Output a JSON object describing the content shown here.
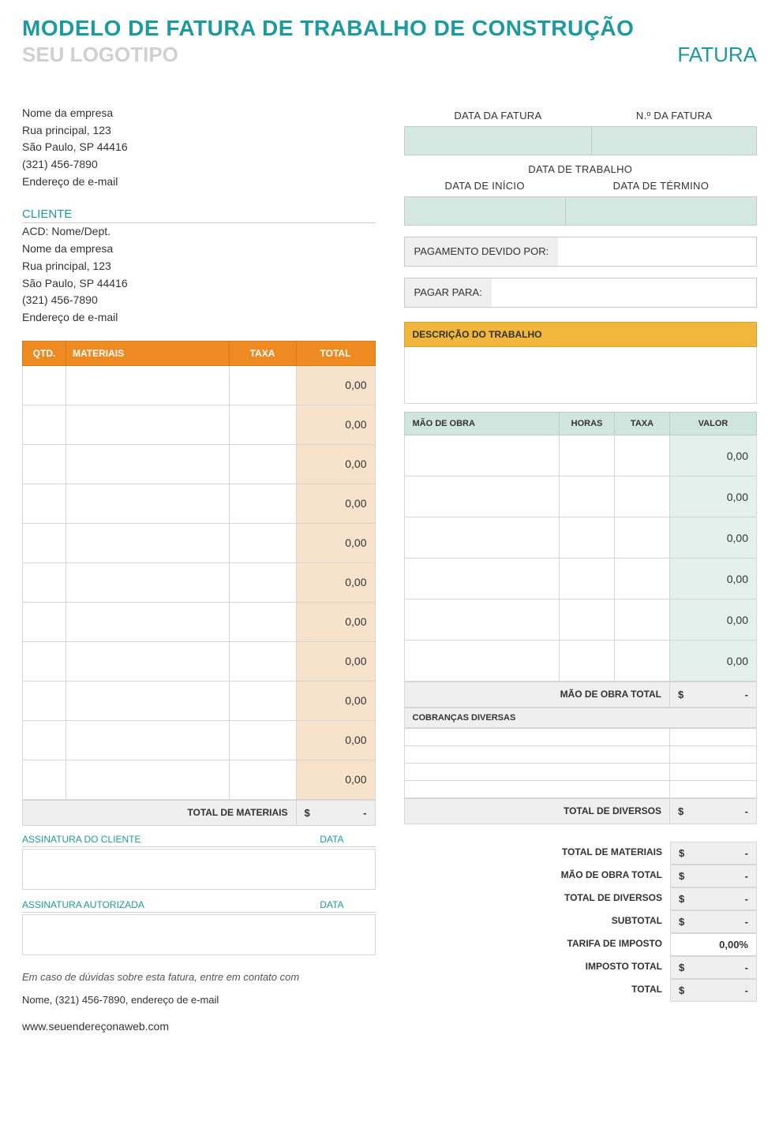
{
  "header": {
    "title": "MODELO DE FATURA DE TRABALHO DE CONSTRUÇÃO",
    "logo_placeholder": "SEU LOGOTIPO",
    "invoice_label": "FATURA"
  },
  "company": {
    "name": "Nome da empresa",
    "address1": "Rua principal, 123",
    "address2": "São Paulo, SP 44416",
    "phone": "(321) 456-7890",
    "email": "Endereço de e-mail"
  },
  "client": {
    "section_label": "CLIENTE",
    "attn": "ACD: Nome/Dept.",
    "name": "Nome da empresa",
    "address1": "Rua principal, 123",
    "address2": "São Paulo, SP 44416",
    "phone": "(321) 456-7890",
    "email": "Endereço de e-mail"
  },
  "info": {
    "invoice_date_label": "DATA DA FATURA",
    "invoice_no_label": "N.º DA FATURA",
    "work_date_label": "DATA DE TRABALHO",
    "start_label": "DATA DE INÍCIO",
    "end_label": "DATA DE TÉRMINO",
    "payment_due_label": "PAGAMENTO DEVIDO POR:",
    "pay_to_label": "PAGAR PARA:"
  },
  "materials": {
    "headers": {
      "qty": "QTD.",
      "item": "MATERIAIS",
      "rate": "TAXA",
      "total": "TOTAL"
    },
    "rows": [
      {
        "total": "0,00"
      },
      {
        "total": "0,00"
      },
      {
        "total": "0,00"
      },
      {
        "total": "0,00"
      },
      {
        "total": "0,00"
      },
      {
        "total": "0,00"
      },
      {
        "total": "0,00"
      },
      {
        "total": "0,00"
      },
      {
        "total": "0,00"
      },
      {
        "total": "0,00"
      },
      {
        "total": "0,00"
      }
    ],
    "footer_label": "TOTAL DE MATERIAIS",
    "footer_currency": "$",
    "footer_value": "-"
  },
  "job": {
    "header": "DESCRIÇÃO DO TRABALHO"
  },
  "labor": {
    "headers": {
      "desc": "MÃO DE OBRA",
      "hours": "HORAS",
      "rate": "TAXA",
      "amount": "VALOR"
    },
    "rows": [
      {
        "amount": "0,00"
      },
      {
        "amount": "0,00"
      },
      {
        "amount": "0,00"
      },
      {
        "amount": "0,00"
      },
      {
        "amount": "0,00"
      },
      {
        "amount": "0,00"
      }
    ],
    "footer_label": "MÃO DE OBRA TOTAL",
    "footer_currency": "$",
    "footer_value": "-"
  },
  "misc": {
    "header": "COBRANÇAS DIVERSAS",
    "rows": 4,
    "footer_label": "TOTAL DE DIVERSOS",
    "footer_currency": "$",
    "footer_value": "-"
  },
  "signatures": {
    "client_label": "ASSINATURA DO CLIENTE",
    "auth_label": "ASSINATURA AUTORIZADA",
    "date_label": "DATA"
  },
  "summary": {
    "rows": [
      {
        "label": "TOTAL DE MATERIAIS",
        "currency": "$",
        "value": "-",
        "style": "gray"
      },
      {
        "label": "MÃO DE OBRA TOTAL",
        "currency": "$",
        "value": "-",
        "style": "gray"
      },
      {
        "label": "TOTAL DE DIVERSOS",
        "currency": "$",
        "value": "-",
        "style": "gray"
      },
      {
        "label": "SUBTOTAL",
        "currency": "$",
        "value": "-",
        "style": "gray"
      },
      {
        "label": "TARIFA DE IMPOSTO",
        "currency": "",
        "value": "0,00%",
        "style": "white"
      },
      {
        "label": "IMPOSTO TOTAL",
        "currency": "$",
        "value": "-",
        "style": "gray"
      },
      {
        "label": "TOTAL",
        "currency": "$",
        "value": "-",
        "style": "gray"
      }
    ]
  },
  "footer": {
    "note": "Em caso de dúvidas sobre esta fatura, entre em contato com",
    "contact": "Nome, (321) 456-7890, endereço de e-mail",
    "url": "www.seuendereçonaweb.com"
  }
}
